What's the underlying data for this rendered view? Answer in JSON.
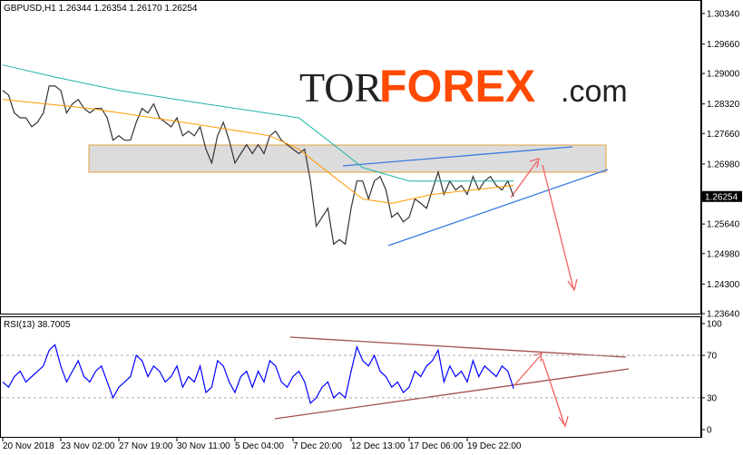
{
  "logo": {
    "left": "TOR",
    "mid": "FOREX",
    "right": ".com"
  },
  "chart_data": [
    {
      "type": "line",
      "title": "GBPUSD,H1  1.26344 1.26354 1.26170 1.26254",
      "ylim": [
        1.2366,
        1.3064
      ],
      "yticks": [
        {
          "value": 1.3034,
          "label": "1.30340"
        },
        {
          "value": 1.2966,
          "label": "1.29660"
        },
        {
          "value": 1.29,
          "label": "1.29000"
        },
        {
          "value": 1.2832,
          "label": "1.28320"
        },
        {
          "value": 1.2766,
          "label": "1.27660"
        },
        {
          "value": 1.2698,
          "label": "1.26980"
        },
        {
          "value": 1.2564,
          "label": "1.25640"
        },
        {
          "value": 1.2498,
          "label": "1.24980"
        },
        {
          "value": 1.243,
          "label": "1.24300"
        },
        {
          "value": 1.2364,
          "label": "1.23640"
        }
      ],
      "current_price": 1.26254,
      "series": [
        {
          "color": "#333333",
          "values": [
            1.2862,
            1.2852,
            1.2812,
            1.2801,
            1.2801,
            1.2781,
            1.2791,
            1.2812,
            1.2872,
            1.2872,
            1.2862,
            1.2812,
            1.2832,
            1.2842,
            1.2822,
            1.2812,
            1.2822,
            1.2822,
            1.2801,
            1.2751,
            1.2761,
            1.2751,
            1.2751,
            1.2791,
            1.2822,
            1.2812,
            1.2832,
            1.2801,
            1.2791,
            1.2781,
            1.2801,
            1.2761,
            1.2771,
            1.2761,
            1.2781,
            1.2731,
            1.27,
            1.2761,
            1.2791,
            1.2751,
            1.27,
            1.2721,
            1.2741,
            1.2721,
            1.2741,
            1.2721,
            1.2761,
            1.2771,
            1.2751,
            1.2741,
            1.2731,
            1.2721,
            1.2731,
            1.266,
            1.2559,
            1.2579,
            1.2599,
            1.2519,
            1.2529,
            1.2519,
            1.2599,
            1.266,
            1.266,
            1.262,
            1.266,
            1.267,
            1.264,
            1.2579,
            1.2589,
            1.2569,
            1.2579,
            1.262,
            1.261,
            1.2599,
            1.264,
            1.268,
            1.263,
            1.266,
            1.264,
            1.265,
            1.263,
            1.267,
            1.264,
            1.266,
            1.267,
            1.265,
            1.264,
            1.266,
            1.26254
          ]
        },
        {
          "color": "#20b2aa",
          "x": [
            0,
            9,
            20,
            35,
            51,
            56,
            62,
            70,
            88
          ],
          "values": [
            1.2919,
            1.2892,
            1.2862,
            1.2832,
            1.2801,
            1.2751,
            1.269,
            1.266,
            1.266
          ]
        },
        {
          "color": "#ff9900",
          "x": [
            0,
            15,
            31,
            46,
            51,
            56,
            62,
            67,
            74,
            88
          ],
          "values": [
            1.2842,
            1.2822,
            1.2791,
            1.2761,
            1.2731,
            1.268,
            1.262,
            1.261,
            1.263,
            1.265
          ]
        }
      ]
    },
    {
      "type": "line",
      "title": "RSI(13) 38.7005",
      "ylim": [
        0,
        100
      ],
      "yticks": [
        100,
        70,
        30,
        0
      ],
      "levels": [
        70,
        30
      ],
      "categories": [
        "20 Nov 2018",
        null,
        null,
        null,
        null,
        null,
        null,
        null,
        null,
        null,
        "23 Nov 02:00",
        null,
        null,
        null,
        null,
        null,
        null,
        null,
        null,
        null,
        "27 Nov 19:00",
        null,
        null,
        null,
        null,
        null,
        null,
        null,
        null,
        null,
        "30 Nov 11:00",
        null,
        null,
        null,
        null,
        null,
        null,
        null,
        null,
        null,
        "5 Dec 04:00",
        null,
        null,
        null,
        null,
        null,
        null,
        null,
        null,
        null,
        "7 Dec 20:00",
        null,
        null,
        null,
        null,
        null,
        null,
        null,
        null,
        null,
        "12 Dec 13:00",
        null,
        null,
        null,
        null,
        null,
        null,
        null,
        null,
        null,
        "17 Dec 06:00",
        null,
        null,
        null,
        null,
        null,
        null,
        null,
        null,
        null,
        "19 Dec 22:00",
        null,
        null,
        null,
        null,
        null,
        null,
        null,
        null
      ],
      "series": [
        {
          "color": "#0000ff",
          "values": [
            45,
            40,
            50,
            55,
            45,
            50,
            55,
            60,
            75,
            80,
            60,
            45,
            55,
            65,
            50,
            45,
            55,
            60,
            45,
            30,
            40,
            45,
            50,
            70,
            65,
            50,
            60,
            55,
            45,
            50,
            60,
            40,
            50,
            45,
            60,
            35,
            40,
            65,
            60,
            45,
            35,
            50,
            55,
            40,
            55,
            45,
            65,
            60,
            45,
            40,
            50,
            55,
            45,
            25,
            30,
            40,
            45,
            30,
            35,
            30,
            55,
            78,
            65,
            60,
            70,
            55,
            50,
            40,
            45,
            35,
            40,
            55,
            50,
            60,
            65,
            75,
            45,
            60,
            50,
            55,
            45,
            65,
            50,
            60,
            55,
            50,
            60,
            55,
            38.7005
          ]
        }
      ]
    }
  ]
}
